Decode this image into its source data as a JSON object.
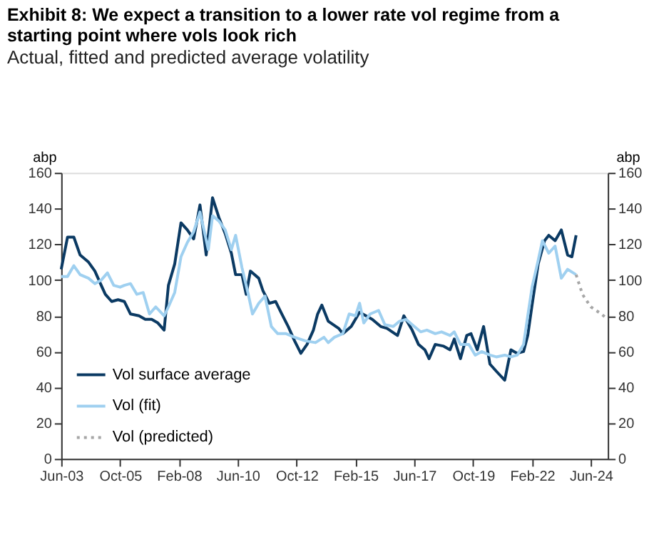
{
  "chart_data": {
    "type": "line",
    "title": "Exhibit 8: We expect a transition to a lower rate vol regime from a starting point where vols look rich",
    "subtitle": "Actual, fitted and predicted average volatility",
    "ylabel": "abp",
    "y2label": "abp",
    "xlim": [
      "2003-06",
      "2025-02"
    ],
    "xticks": [
      {
        "value": "2003-06",
        "label": "Jun-03"
      },
      {
        "value": "2005-10",
        "label": "Oct-05"
      },
      {
        "value": "2008-02",
        "label": "Feb-08"
      },
      {
        "value": "2010-06",
        "label": "Jun-10"
      },
      {
        "value": "2012-10",
        "label": "Oct-12"
      },
      {
        "value": "2015-02",
        "label": "Feb-15"
      },
      {
        "value": "2017-06",
        "label": "Jun-17"
      },
      {
        "value": "2019-10",
        "label": "Oct-19"
      },
      {
        "value": "2022-02",
        "label": "Feb-22"
      },
      {
        "value": "2024-06",
        "label": "Jun-24"
      }
    ],
    "ylim": [
      0,
      160
    ],
    "yticks": [
      0,
      20,
      40,
      60,
      80,
      100,
      120,
      140,
      160
    ],
    "y2lim": [
      0,
      160
    ],
    "y2ticks": [
      0,
      20,
      40,
      60,
      80,
      100,
      120,
      140,
      160
    ],
    "grid": false,
    "legend": "bottom left",
    "series": [
      {
        "name": "Vol surface average",
        "color": "#0b3a63",
        "line_style": "solid",
        "x": [
          "2003-06",
          "2003-09",
          "2003-12",
          "2004-03",
          "2004-07",
          "2004-10",
          "2005-01",
          "2005-03",
          "2005-06",
          "2005-09",
          "2005-12",
          "2006-03",
          "2006-07",
          "2006-10",
          "2007-01",
          "2007-04",
          "2007-07",
          "2007-09",
          "2007-12",
          "2008-03",
          "2008-06",
          "2008-09",
          "2008-12",
          "2009-03",
          "2009-06",
          "2009-09",
          "2009-12",
          "2010-03",
          "2010-05",
          "2010-08",
          "2010-10",
          "2010-12",
          "2011-04",
          "2011-06",
          "2011-09",
          "2011-12",
          "2012-03",
          "2012-06",
          "2012-09",
          "2012-12",
          "2013-03",
          "2013-06",
          "2013-08",
          "2013-10",
          "2014-01",
          "2014-06",
          "2014-08",
          "2014-12",
          "2015-04",
          "2015-07",
          "2015-10",
          "2016-02",
          "2016-05",
          "2016-10",
          "2017-01",
          "2017-05",
          "2017-08",
          "2017-11",
          "2018-01",
          "2018-04",
          "2018-08",
          "2018-11",
          "2019-01",
          "2019-04",
          "2019-07",
          "2019-09",
          "2019-12",
          "2020-03",
          "2020-06",
          "2020-09",
          "2021-01",
          "2021-04",
          "2021-07",
          "2021-10",
          "2021-12",
          "2022-02",
          "2022-05",
          "2022-08",
          "2022-10",
          "2023-01",
          "2023-04",
          "2023-07",
          "2023-09",
          "2023-11"
        ],
        "values": [
          106,
          124,
          124,
          114,
          110,
          105,
          97,
          92,
          88,
          89,
          88,
          81,
          80,
          78,
          78,
          76,
          72,
          97,
          109,
          132,
          128,
          123,
          142,
          114,
          146,
          135,
          126,
          115,
          103,
          103,
          92,
          105,
          101,
          94,
          87,
          88,
          81,
          74,
          66,
          59,
          64,
          72,
          81,
          86,
          77,
          73,
          70,
          74,
          82,
          80,
          78,
          74,
          73,
          69,
          80,
          72,
          64,
          61,
          56,
          64,
          63,
          61,
          67,
          56,
          69,
          70,
          61,
          74,
          53,
          49,
          44,
          61,
          59,
          60,
          69,
          86,
          109,
          122,
          125,
          122,
          128,
          114,
          113,
          125
        ]
      },
      {
        "name": "Vol (fit)",
        "color": "#9fd0f0",
        "line_style": "solid",
        "x": [
          "2003-06",
          "2003-09",
          "2003-12",
          "2004-03",
          "2004-07",
          "2004-10",
          "2005-01",
          "2005-04",
          "2005-07",
          "2005-10",
          "2005-12",
          "2006-03",
          "2006-06",
          "2006-09",
          "2006-12",
          "2007-03",
          "2007-07",
          "2007-09",
          "2007-12",
          "2008-03",
          "2008-06",
          "2008-09",
          "2008-12",
          "2009-04",
          "2009-06",
          "2009-09",
          "2009-12",
          "2010-03",
          "2010-05",
          "2010-08",
          "2010-11",
          "2011-01",
          "2011-04",
          "2011-07",
          "2011-10",
          "2012-01",
          "2012-05",
          "2012-09",
          "2013-02",
          "2013-07",
          "2013-11",
          "2014-01",
          "2014-04",
          "2014-08",
          "2014-11",
          "2015-02",
          "2015-04",
          "2015-06",
          "2015-09",
          "2016-01",
          "2016-04",
          "2016-08",
          "2016-11",
          "2017-02",
          "2017-06",
          "2017-09",
          "2017-12",
          "2018-04",
          "2018-07",
          "2018-11",
          "2019-01",
          "2019-04",
          "2019-08",
          "2019-11",
          "2020-02",
          "2020-06",
          "2020-09",
          "2021-01",
          "2021-04",
          "2021-07",
          "2021-10",
          "2021-12",
          "2022-02",
          "2022-05",
          "2022-07",
          "2022-10",
          "2023-01",
          "2023-04",
          "2023-07",
          "2023-11"
        ],
        "values": [
          102,
          102,
          108,
          103,
          101,
          98,
          100,
          104,
          97,
          96,
          97,
          98,
          92,
          93,
          81,
          85,
          80,
          85,
          93,
          113,
          121,
          127,
          138,
          117,
          136,
          133,
          128,
          117,
          125,
          107,
          92,
          81,
          87,
          91,
          74,
          70,
          70,
          68,
          66,
          65,
          68,
          65,
          68,
          70,
          81,
          80,
          87,
          76,
          81,
          83,
          75,
          74,
          77,
          78,
          74,
          71,
          72,
          70,
          71,
          69,
          71,
          64,
          64,
          58,
          60,
          58,
          57,
          58,
          57,
          58,
          64,
          80,
          96,
          111,
          122,
          115,
          119,
          101,
          106,
          103
        ]
      },
      {
        "name": "Vol (predicted)",
        "color": "#a6a6a6",
        "line_style": "dotted",
        "x": [
          "2023-11",
          "2024-02",
          "2024-06",
          "2024-11",
          "2025-02"
        ],
        "values": [
          103,
          92,
          85,
          81,
          78
        ]
      }
    ]
  }
}
